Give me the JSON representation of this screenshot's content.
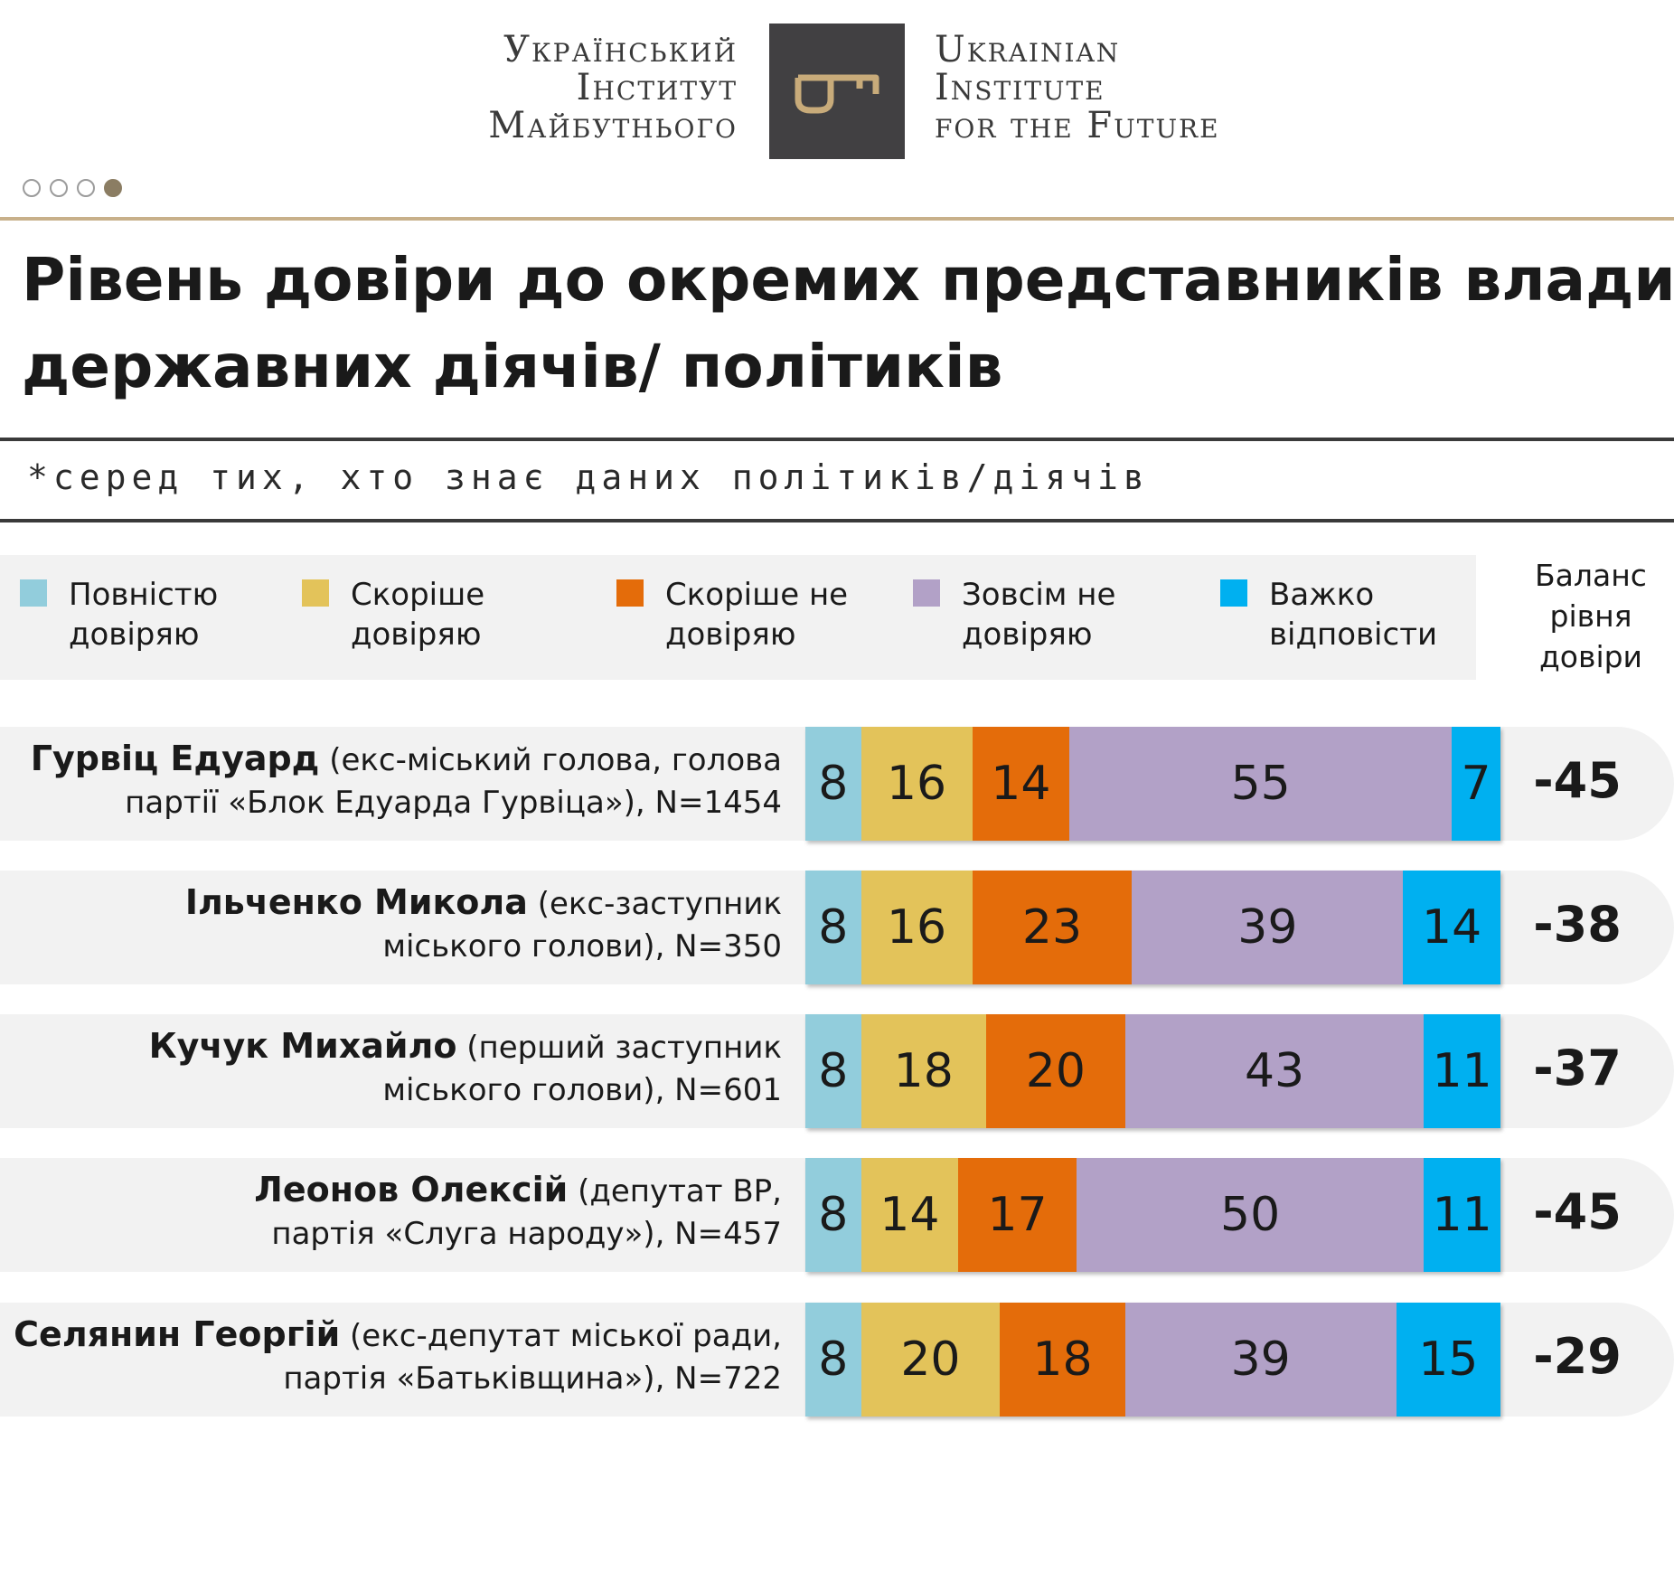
{
  "header": {
    "logo_ua": [
      "Український",
      "Інститут",
      "Майбутнього"
    ],
    "logo_en": [
      "Ukrainian",
      "Institute",
      "for the Future"
    ],
    "logo_icon": "key-icon",
    "pagination": {
      "total": 4,
      "active": 4
    }
  },
  "title_lines": [
    "Рівень довіри до окремих представників влади,",
    "державних діячів/ політиків"
  ],
  "subtitle": "*серед тих, хто знає даних політиків/діячів",
  "colors": {
    "full_trust": "#92cddc",
    "rather_trust": "#e3c35a",
    "rather_distrust": "#e46c0a",
    "no_trust": "#b2a1c7",
    "hard_to_say": "#00b0f0"
  },
  "legend": [
    {
      "key": "full_trust",
      "lines": [
        "Повністю",
        "довіряю"
      ]
    },
    {
      "key": "rather_trust",
      "lines": [
        "Скоріше",
        "довіряю"
      ]
    },
    {
      "key": "rather_distrust",
      "lines": [
        "Скоріше не",
        "довіряю"
      ]
    },
    {
      "key": "no_trust",
      "lines": [
        "Зовсім не",
        "довіряю"
      ]
    },
    {
      "key": "hard_to_say",
      "lines": [
        "Важко",
        "відповісти"
      ]
    }
  ],
  "balance_header": [
    "Баланс",
    "рівня",
    "довіри"
  ],
  "chart_data": {
    "type": "bar",
    "orientation": "horizontal",
    "stacked": true,
    "title": "Рівень довіри до окремих представників влади, державних діячів/ політиків",
    "categories": [
      "Гурвіц Едуард (екс-міський голова, голова партії «Блок Едуарда Гурвіца»), N=1454",
      "Ільченко Микола (екс-заступник міського голови), N=350",
      "Кучук Михайло (перший заступник міського голови), N=601",
      "Леонов Олексій (депутат ВР, партія «Слуга народу»), N=457",
      "Селянин Георгій (екс-депутат міської ради, партія «Батьківщина»), N=722"
    ],
    "series": [
      {
        "name": "Повністю довіряю",
        "values": [
          8,
          8,
          8,
          8,
          8
        ]
      },
      {
        "name": "Скоріше довіряю",
        "values": [
          16,
          16,
          18,
          14,
          20
        ]
      },
      {
        "name": "Скоріше не довіряю",
        "values": [
          14,
          23,
          20,
          17,
          18
        ]
      },
      {
        "name": "Зовсім не довіряю",
        "values": [
          55,
          39,
          43,
          50,
          39
        ]
      },
      {
        "name": "Важко відповісти",
        "values": [
          7,
          14,
          11,
          11,
          15
        ]
      }
    ],
    "balance": [
      -45,
      -38,
      -37,
      -45,
      -29
    ],
    "rows": [
      {
        "name": "Гурвіц Едуард",
        "desc_lines": [
          "(екс-міський голова, голова",
          "партії «Блок Едуарда Гурвіца»), N=1454"
        ]
      },
      {
        "name": "Ільченко Микола",
        "desc_lines": [
          "(екс-заступник",
          "міського голови), N=350"
        ]
      },
      {
        "name": "Кучук Михайло",
        "desc_lines": [
          "(перший заступник",
          "міського голови), N=601"
        ]
      },
      {
        "name": "Леонов Олексій",
        "desc_lines": [
          "(депутат ВР,",
          "партія «Слуга народу»), N=457"
        ]
      },
      {
        "name": "Селянин Георгій",
        "desc_lines": [
          "(екс-депутат міської ради,",
          "партія «Батьківщина»), N=722"
        ]
      }
    ]
  }
}
